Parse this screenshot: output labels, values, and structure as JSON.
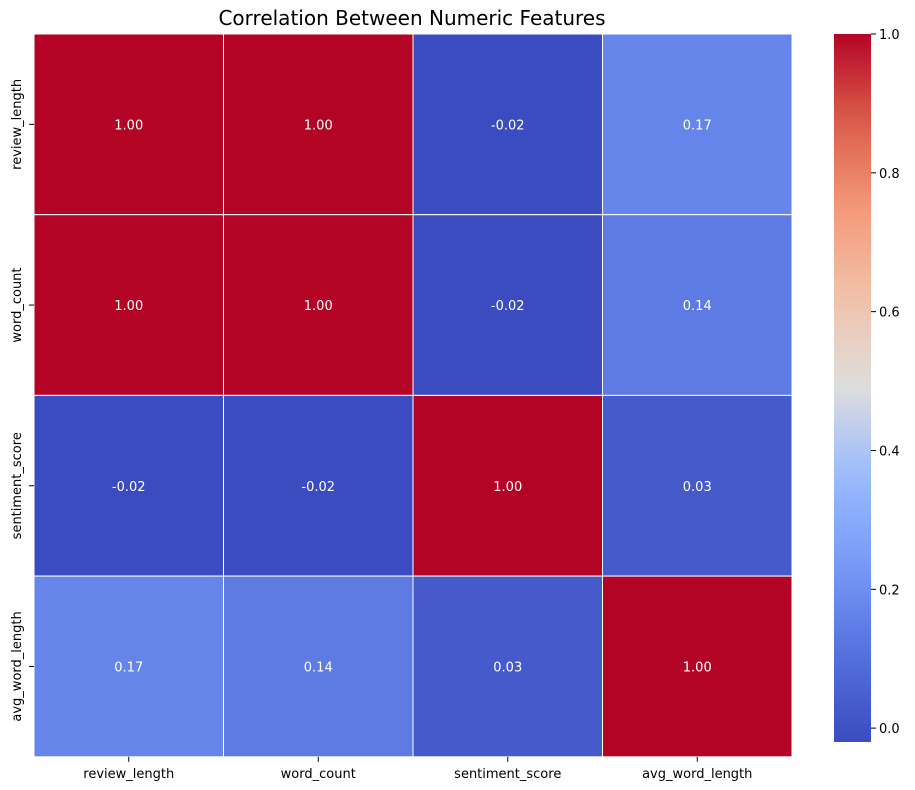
{
  "chart_data": {
    "type": "heatmap",
    "title": "Correlation Between Numeric Features",
    "xlabel": "",
    "ylabel": "",
    "x_categories": [
      "review_length",
      "word_count",
      "sentiment_score",
      "avg_word_length"
    ],
    "y_categories": [
      "review_length",
      "word_count",
      "sentiment_score",
      "avg_word_length"
    ],
    "values": [
      [
        1.0,
        1.0,
        -0.02,
        0.17
      ],
      [
        1.0,
        1.0,
        -0.02,
        0.14
      ],
      [
        -0.02,
        -0.02,
        1.0,
        0.03
      ],
      [
        0.17,
        0.14,
        0.03,
        1.0
      ]
    ],
    "cell_labels": [
      [
        "1.00",
        "1.00",
        "-0.02",
        "0.17"
      ],
      [
        "1.00",
        "1.00",
        "-0.02",
        "0.14"
      ],
      [
        "-0.02",
        "-0.02",
        "1.00",
        "0.03"
      ],
      [
        "0.17",
        "0.14",
        "0.03",
        "1.00"
      ]
    ],
    "colormap": "coolwarm",
    "colorbar": {
      "range": [
        -0.02,
        1.0
      ],
      "ticks": [
        0.0,
        0.2,
        0.4,
        0.6,
        0.8,
        1.0
      ],
      "tick_labels": [
        "0.0",
        "0.2",
        "0.4",
        "0.6",
        "0.8",
        "1.0"
      ]
    },
    "grid_line_color": "#ffffff",
    "grid": false,
    "legend": "colorbar-right"
  }
}
